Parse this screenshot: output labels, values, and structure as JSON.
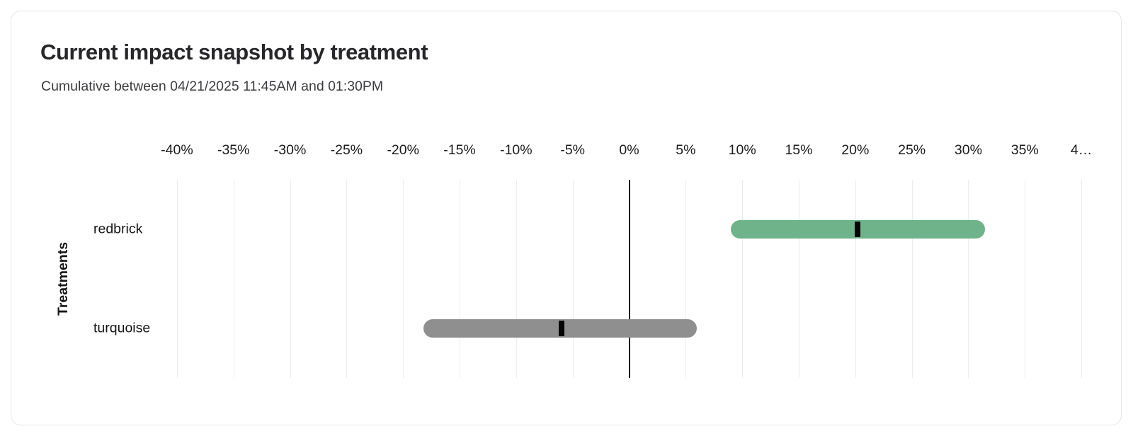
{
  "card": {
    "title": "Current impact snapshot by treatment",
    "subtitle": "Cumulative between 04/21/2025 11:45AM and 01:30PM"
  },
  "chart_data": {
    "type": "bar",
    "subtype": "horizontal-range-bars-with-point-estimate",
    "title": "Current impact snapshot by treatment",
    "subtitle": "Cumulative between 04/21/2025 11:45AM and 01:30PM",
    "xlabel": "",
    "ylabel": "Treatments",
    "unit": "%",
    "categories": [
      "redbrick",
      "turquoise"
    ],
    "series": [
      {
        "name": "redbrick",
        "lower": 9.0,
        "upper": 31.5,
        "estimate": 20.2,
        "color": "#6fb38a"
      },
      {
        "name": "turquoise",
        "lower": -18.2,
        "upper": 6.0,
        "estimate": -6.0,
        "color": "#8f8f8f"
      }
    ],
    "x_ticks": [
      {
        "value": -40,
        "label": "-40%"
      },
      {
        "value": -35,
        "label": "-35%"
      },
      {
        "value": -30,
        "label": "-30%"
      },
      {
        "value": -25,
        "label": "-25%"
      },
      {
        "value": -20,
        "label": "-20%"
      },
      {
        "value": -15,
        "label": "-15%"
      },
      {
        "value": -10,
        "label": "-10%"
      },
      {
        "value": -5,
        "label": "-5%"
      },
      {
        "value": 0,
        "label": "0%"
      },
      {
        "value": 5,
        "label": "5%"
      },
      {
        "value": 10,
        "label": "10%"
      },
      {
        "value": 15,
        "label": "15%"
      },
      {
        "value": 20,
        "label": "20%"
      },
      {
        "value": 25,
        "label": "25%"
      },
      {
        "value": 30,
        "label": "30%"
      },
      {
        "value": 35,
        "label": "35%"
      },
      {
        "value": 40,
        "label": "4…"
      }
    ],
    "xlim": [
      -42.5,
      42.5
    ],
    "grid": "vertical-only",
    "zero_line": true,
    "legend": "none",
    "colors": {
      "positive_bar": "#6fb38a",
      "neutral_bar": "#8f8f8f",
      "estimate_marker": "#050505",
      "grid_line": "#ececee",
      "zero_line": "#1b1b1d",
      "card_border": "#e5e5e8",
      "background": "#ffffff"
    }
  }
}
